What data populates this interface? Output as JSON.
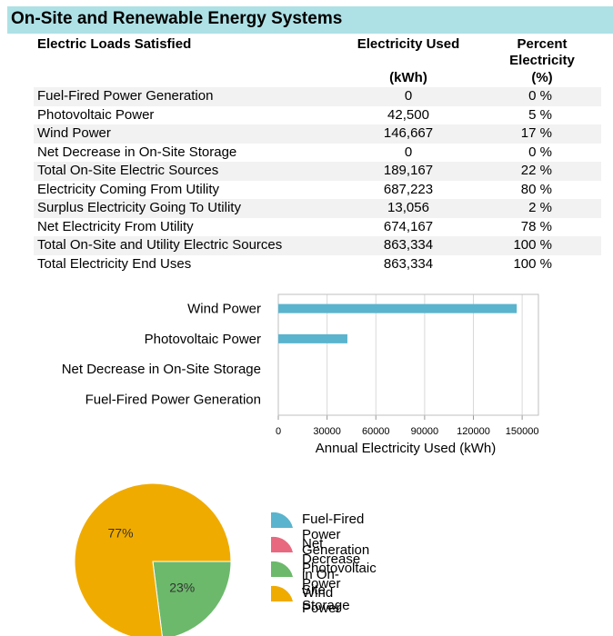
{
  "header": {
    "title": "On-Site and Renewable Energy Systems"
  },
  "table": {
    "col1": "Electric Loads Satisfied",
    "col2": "Electricity Used",
    "col3": "Percent Electricity",
    "unit2": "(kWh)",
    "unit3": "(%)",
    "rows": [
      {
        "label": "Fuel-Fired Power Generation",
        "kwh": "0",
        "pct": "0 %"
      },
      {
        "label": "Photovoltaic Power",
        "kwh": "42,500",
        "pct": "5 %"
      },
      {
        "label": "Wind Power",
        "kwh": "146,667",
        "pct": "17 %"
      },
      {
        "label": "Net Decrease in On-Site Storage",
        "kwh": "0",
        "pct": "0 %"
      },
      {
        "label": "Total On-Site Electric Sources",
        "kwh": "189,167",
        "pct": "22 %"
      },
      {
        "label": "Electricity Coming From Utility",
        "kwh": "687,223",
        "pct": "80 %"
      },
      {
        "label": "Surplus Electricity Going To Utility",
        "kwh": "13,056",
        "pct": "2 %"
      },
      {
        "label": "Net Electricity From Utility",
        "kwh": "674,167",
        "pct": "78 %"
      },
      {
        "label": "Total On-Site and Utility Electric Sources",
        "kwh": "863,334",
        "pct": "100 %"
      },
      {
        "label": "Total Electricity End Uses",
        "kwh": "863,334",
        "pct": "100 %"
      }
    ]
  },
  "chart_data": [
    {
      "type": "bar",
      "orientation": "horizontal",
      "categories": [
        "Wind Power",
        "Photovoltaic Power",
        "Net Decrease in On-Site Storage",
        "Fuel-Fired Power Generation"
      ],
      "values": [
        146667,
        42500,
        0,
        0
      ],
      "xlabel": "Annual Electricity Used (kWh)",
      "xlim": [
        0,
        160000
      ],
      "xticks": [
        0,
        30000,
        60000,
        90000,
        120000,
        150000
      ],
      "xtick_labels": [
        "0",
        "30000",
        "60000",
        "90000",
        "120000",
        "150000"
      ],
      "grid": true,
      "color": "#5bb4cd"
    },
    {
      "type": "pie",
      "labels": [
        "Fuel-Fired Power Generation",
        "Net Decrease in On-Site Storage",
        "Photovoltaic Power",
        "Wind Power"
      ],
      "values": [
        0,
        0,
        23,
        77
      ],
      "slice_labels": [
        "",
        "",
        "23%",
        "77%"
      ],
      "colors": [
        "#5bb4cd",
        "#e8697f",
        "#6cb96b",
        "#f0ab00"
      ],
      "legend_position": "right"
    }
  ]
}
